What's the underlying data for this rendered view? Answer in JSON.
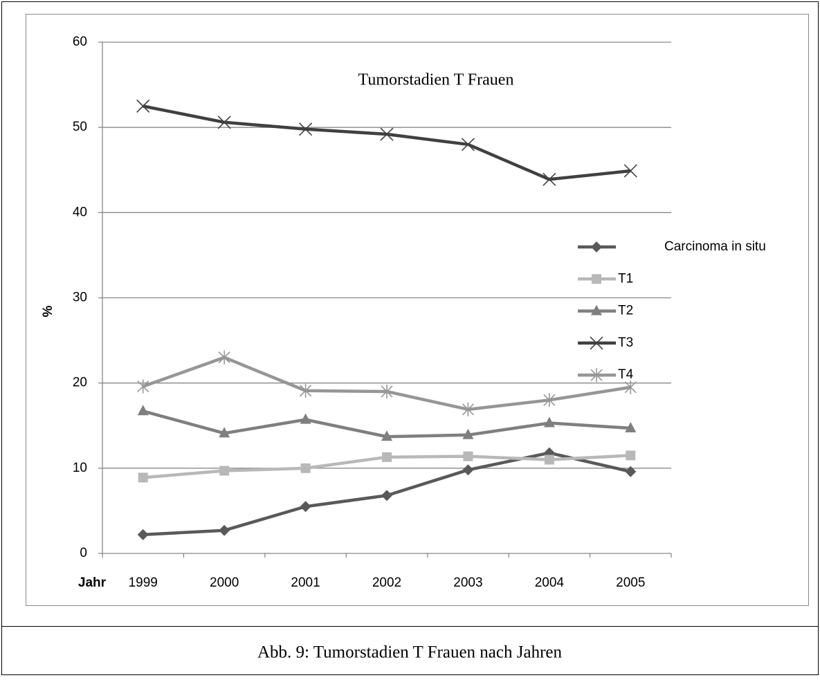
{
  "chart_data": {
    "type": "line",
    "title": "Tumorstadien T Frauen",
    "x_label": "Jahr",
    "y_label": "%",
    "caption": "Abb. 9: Tumorstadien T Frauen nach Jahren",
    "categories": [
      "1999",
      "2000",
      "2001",
      "2002",
      "2003",
      "2004",
      "2005"
    ],
    "ylim": [
      0,
      60
    ],
    "yticks": [
      0,
      10,
      20,
      30,
      40,
      50,
      60
    ],
    "grid": true,
    "series": [
      {
        "name": "Carcinoma in situ",
        "color": "#595959",
        "marker": "diamond",
        "values": [
          2.2,
          2.7,
          5.5,
          6.8,
          9.8,
          11.8,
          9.6
        ]
      },
      {
        "name": "T1",
        "color": "#b8b8b8",
        "marker": "square",
        "values": [
          8.9,
          9.7,
          10.0,
          11.3,
          11.4,
          11.0,
          11.5
        ]
      },
      {
        "name": "T2",
        "color": "#7f7f7f",
        "marker": "triangle",
        "values": [
          16.7,
          14.1,
          15.7,
          13.7,
          13.9,
          15.3,
          14.7
        ]
      },
      {
        "name": "T3",
        "color": "#404040",
        "marker": "x",
        "values": [
          52.5,
          50.6,
          49.8,
          49.2,
          48.0,
          43.9,
          44.9
        ]
      },
      {
        "name": "T4",
        "color": "#969696",
        "marker": "star",
        "values": [
          19.6,
          23.0,
          19.1,
          19.0,
          16.9,
          18.0,
          19.5
        ]
      }
    ]
  }
}
